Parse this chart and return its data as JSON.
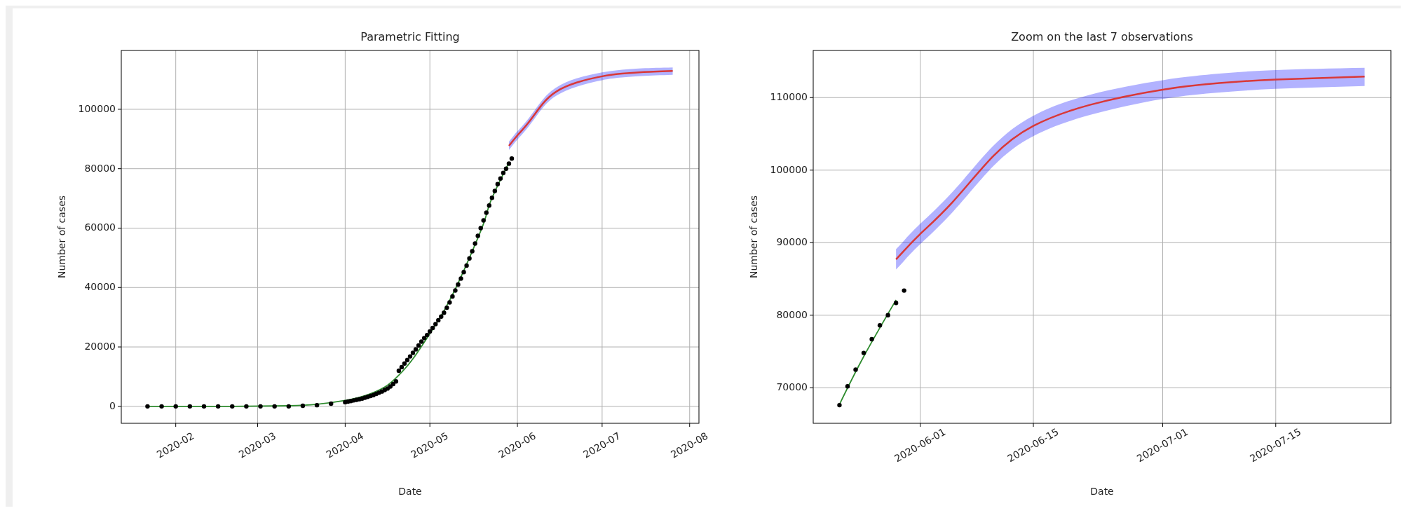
{
  "chart_data": [
    {
      "type": "line",
      "title": "Parametric Fitting",
      "xlabel": "Date",
      "ylabel": "Number of cases",
      "grid": true,
      "xlim": [
        "2020-01-12T17:00",
        "2020-08-04T07:00"
      ],
      "ylim": [
        -5700,
        119800
      ],
      "xticks": [
        {
          "value": "2020-02-01",
          "label": "2020-02"
        },
        {
          "value": "2020-03-01",
          "label": "2020-03"
        },
        {
          "value": "2020-04-01",
          "label": "2020-04"
        },
        {
          "value": "2020-05-01",
          "label": "2020-05"
        },
        {
          "value": "2020-06-01",
          "label": "2020-06"
        },
        {
          "value": "2020-07-01",
          "label": "2020-07"
        },
        {
          "value": "2020-08-01",
          "label": "2020-08"
        }
      ],
      "yticks": [
        0,
        20000,
        40000,
        60000,
        80000,
        100000
      ],
      "series": [
        {
          "type": "scatter",
          "color": "#000000",
          "marker": "circle",
          "x": [
            "2020-01-22",
            "2020-01-27",
            "2020-02-01",
            "2020-02-06",
            "2020-02-11",
            "2020-02-16",
            "2020-02-21",
            "2020-02-26",
            "2020-03-02",
            "2020-03-07",
            "2020-03-12",
            "2020-03-17",
            "2020-03-22",
            "2020-03-27",
            "2020-04-01",
            "2020-04-02",
            "2020-04-03",
            "2020-04-04",
            "2020-04-05",
            "2020-04-06",
            "2020-04-07",
            "2020-04-08",
            "2020-04-09",
            "2020-04-10",
            "2020-04-11",
            "2020-04-12",
            "2020-04-13",
            "2020-04-14",
            "2020-04-15",
            "2020-04-16",
            "2020-04-17",
            "2020-04-18",
            "2020-04-19",
            "2020-04-20",
            "2020-04-21",
            "2020-04-22",
            "2020-04-23",
            "2020-04-24",
            "2020-04-25",
            "2020-04-26",
            "2020-04-27",
            "2020-04-28",
            "2020-04-29",
            "2020-04-30",
            "2020-05-01",
            "2020-05-02",
            "2020-05-03",
            "2020-05-04",
            "2020-05-05",
            "2020-05-06",
            "2020-05-07",
            "2020-05-08",
            "2020-05-09",
            "2020-05-10",
            "2020-05-11",
            "2020-05-12",
            "2020-05-13",
            "2020-05-14",
            "2020-05-15",
            "2020-05-16",
            "2020-05-17",
            "2020-05-18",
            "2020-05-19",
            "2020-05-20",
            "2020-05-21",
            "2020-05-22",
            "2020-05-23",
            "2020-05-24",
            "2020-05-25",
            "2020-05-26",
            "2020-05-27",
            "2020-05-28",
            "2020-05-29",
            "2020-05-30"
          ],
          "values": [
            0,
            0,
            0,
            0,
            0,
            0,
            0,
            0,
            0,
            0,
            0,
            200,
            400,
            900,
            1400,
            1600,
            1800,
            2000,
            2200,
            2400,
            2600,
            2900,
            3200,
            3500,
            3800,
            4200,
            4600,
            5000,
            5500,
            6000,
            6700,
            7500,
            8400,
            12000,
            13200,
            14400,
            15600,
            16800,
            18000,
            19200,
            20500,
            21800,
            23000,
            24000,
            25200,
            26400,
            27700,
            29000,
            30200,
            31500,
            33200,
            35000,
            37000,
            39000,
            41000,
            43000,
            45200,
            47400,
            49800,
            52200,
            54800,
            57400,
            60000,
            62600,
            65200,
            67600,
            70200,
            72500,
            74800,
            76700,
            78600,
            80000,
            81700,
            83400
          ]
        },
        {
          "type": "line",
          "color": "#2e8b2e",
          "marker": "none",
          "x": [
            "2020-01-22",
            "2020-02-21",
            "2020-03-12",
            "2020-03-22",
            "2020-04-01",
            "2020-04-08",
            "2020-04-15",
            "2020-04-20",
            "2020-04-25",
            "2020-05-01",
            "2020-05-05",
            "2020-05-10",
            "2020-05-15",
            "2020-05-20",
            "2020-05-22",
            "2020-05-25",
            "2020-05-29"
          ],
          "values": [
            0,
            0,
            200,
            700,
            2000,
            3600,
            6500,
            10500,
            16000,
            24500,
            30500,
            39500,
            50000,
            61500,
            67700,
            74300,
            82100
          ]
        },
        {
          "type": "line",
          "color": "#d93838",
          "marker": "none",
          "x": [
            "2020-05-29",
            "2020-05-30",
            "2020-06-01",
            "2020-06-05",
            "2020-06-10",
            "2020-06-15",
            "2020-06-22",
            "2020-07-01",
            "2020-07-08",
            "2020-07-15",
            "2020-07-26"
          ],
          "values": [
            87700,
            88900,
            91200,
            95600,
            101900,
            106100,
            109000,
            111100,
            112000,
            112500,
            112900
          ],
          "lower": [
            86300,
            87500,
            89800,
            94200,
            100500,
            104700,
            107600,
            109800,
            110700,
            111200,
            111600
          ],
          "upper": [
            89100,
            90300,
            92600,
            97000,
            103300,
            107500,
            110400,
            112400,
            113300,
            113800,
            114100
          ]
        }
      ]
    },
    {
      "type": "line",
      "title": "Zoom on the last 7 observations",
      "xlabel": "Date",
      "ylabel": "Number of cases",
      "grid": true,
      "xlim": [
        "2020-05-18T18:00",
        "2020-07-29T06:00"
      ],
      "ylim": [
        65100,
        116500
      ],
      "xticks": [
        "2020-06-01",
        "2020-06-15",
        "2020-07-01",
        "2020-07-15"
      ],
      "yticks": [
        70000,
        80000,
        90000,
        100000,
        110000
      ],
      "series": [
        {
          "type": "scatter",
          "color": "#000000",
          "marker": "circle",
          "x": [
            "2020-05-22",
            "2020-05-23",
            "2020-05-24",
            "2020-05-25",
            "2020-05-26",
            "2020-05-27",
            "2020-05-28",
            "2020-05-29",
            "2020-05-30"
          ],
          "values": [
            67600,
            70200,
            72500,
            74800,
            76700,
            78600,
            80000,
            81700,
            83400
          ]
        },
        {
          "type": "line",
          "color": "#2e8b2e",
          "marker": "none",
          "x": [
            "2020-05-22",
            "2020-05-25",
            "2020-05-29"
          ],
          "values": [
            67700,
            74300,
            82100
          ]
        },
        {
          "type": "line",
          "color": "#d93838",
          "marker": "none",
          "x": [
            "2020-05-29",
            "2020-05-30",
            "2020-06-01",
            "2020-06-05",
            "2020-06-10",
            "2020-06-15",
            "2020-06-22",
            "2020-07-01",
            "2020-07-08",
            "2020-07-15",
            "2020-07-26"
          ],
          "values": [
            87700,
            88900,
            91200,
            95600,
            101900,
            106100,
            109000,
            111100,
            112000,
            112500,
            112900
          ],
          "lower": [
            86300,
            87500,
            89800,
            94200,
            100500,
            104700,
            107600,
            109800,
            110700,
            111200,
            111600
          ],
          "upper": [
            89100,
            90300,
            92600,
            97000,
            103300,
            107500,
            110400,
            112400,
            113300,
            113800,
            114100
          ]
        }
      ]
    }
  ]
}
